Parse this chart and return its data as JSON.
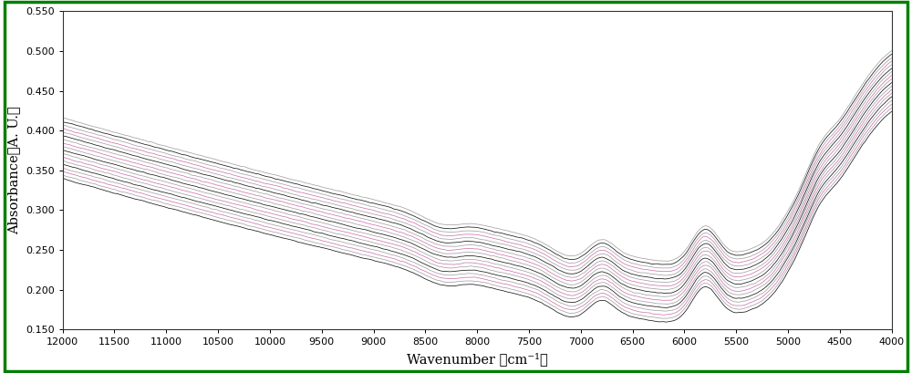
{
  "xmin": 4000,
  "xmax": 12000,
  "ymin": 0.15,
  "ymax": 0.55,
  "xlabel": "Wavenumber （cm⁻¹）",
  "ylabel": "Absorbance（A. U.）",
  "xticks": [
    12000,
    11500,
    11000,
    10500,
    10000,
    9500,
    9000,
    8500,
    8000,
    7500,
    7000,
    6500,
    6000,
    5500,
    5000,
    4500,
    4000
  ],
  "yticks": [
    0.15,
    0.2,
    0.25,
    0.3,
    0.35,
    0.4,
    0.45,
    0.5,
    0.55
  ],
  "n_spectra": 18,
  "background_color": "#ffffff",
  "border_color": "#008000",
  "line_color_black": "#000000",
  "line_color_pink": "#cc66aa",
  "line_color_gray": "#999999"
}
